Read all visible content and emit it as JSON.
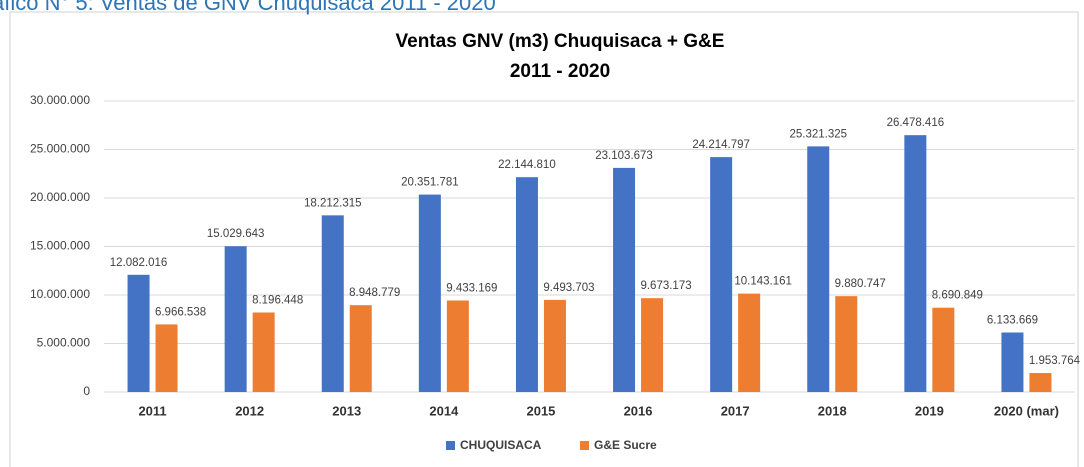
{
  "caption": "áfico N° 5: Ventas de GNV Chuquisaca 2011 - 2020",
  "chart_data": {
    "type": "bar",
    "title": "Ventas GNV (m3) Chuquisaca + G&E",
    "subtitle": "2011 - 2020",
    "categories": [
      "2011",
      "2012",
      "2013",
      "2014",
      "2015",
      "2016",
      "2017",
      "2018",
      "2019",
      "2020 (mar)"
    ],
    "series": [
      {
        "name": "CHUQUISACA",
        "color": "#4472c4",
        "values": [
          12082016,
          15029643,
          18212315,
          20351781,
          22144810,
          23103673,
          24214797,
          25321325,
          26478416,
          6133669
        ],
        "value_labels": [
          "12.082.016",
          "15.029.643",
          "18.212.315",
          "20.351.781",
          "22.144.810",
          "23.103.673",
          "24.214.797",
          "25.321.325",
          "26.478.416",
          "6.133.669"
        ]
      },
      {
        "name": "G&E Sucre",
        "color": "#ed7d31",
        "values": [
          6966538,
          8196448,
          8948779,
          9433169,
          9493703,
          9673173,
          10143161,
          9880747,
          8690849,
          1953764
        ],
        "value_labels": [
          "6.966.538",
          "8.196.448",
          "8.948.779",
          "9.433.169",
          "9.493.703",
          "9.673.173",
          "10.143.161",
          "9.880.747",
          "8.690.849",
          "1.953.764"
        ]
      }
    ],
    "ylim": [
      0,
      30000000
    ],
    "yticks": [
      0,
      {
        "value": 5000000,
        "label": "5.000.000"
      },
      {
        "value": 10000000,
        "label": "10.000.000"
      },
      {
        "value": 15000000,
        "label": "15.000.000"
      },
      {
        "value": 20000000,
        "label": "20.000.000"
      },
      {
        "value": 25000000,
        "label": "25.000.000"
      },
      {
        "value": 30000000,
        "label": "30.000.000"
      }
    ],
    "grid": true,
    "legend": "bottom"
  }
}
